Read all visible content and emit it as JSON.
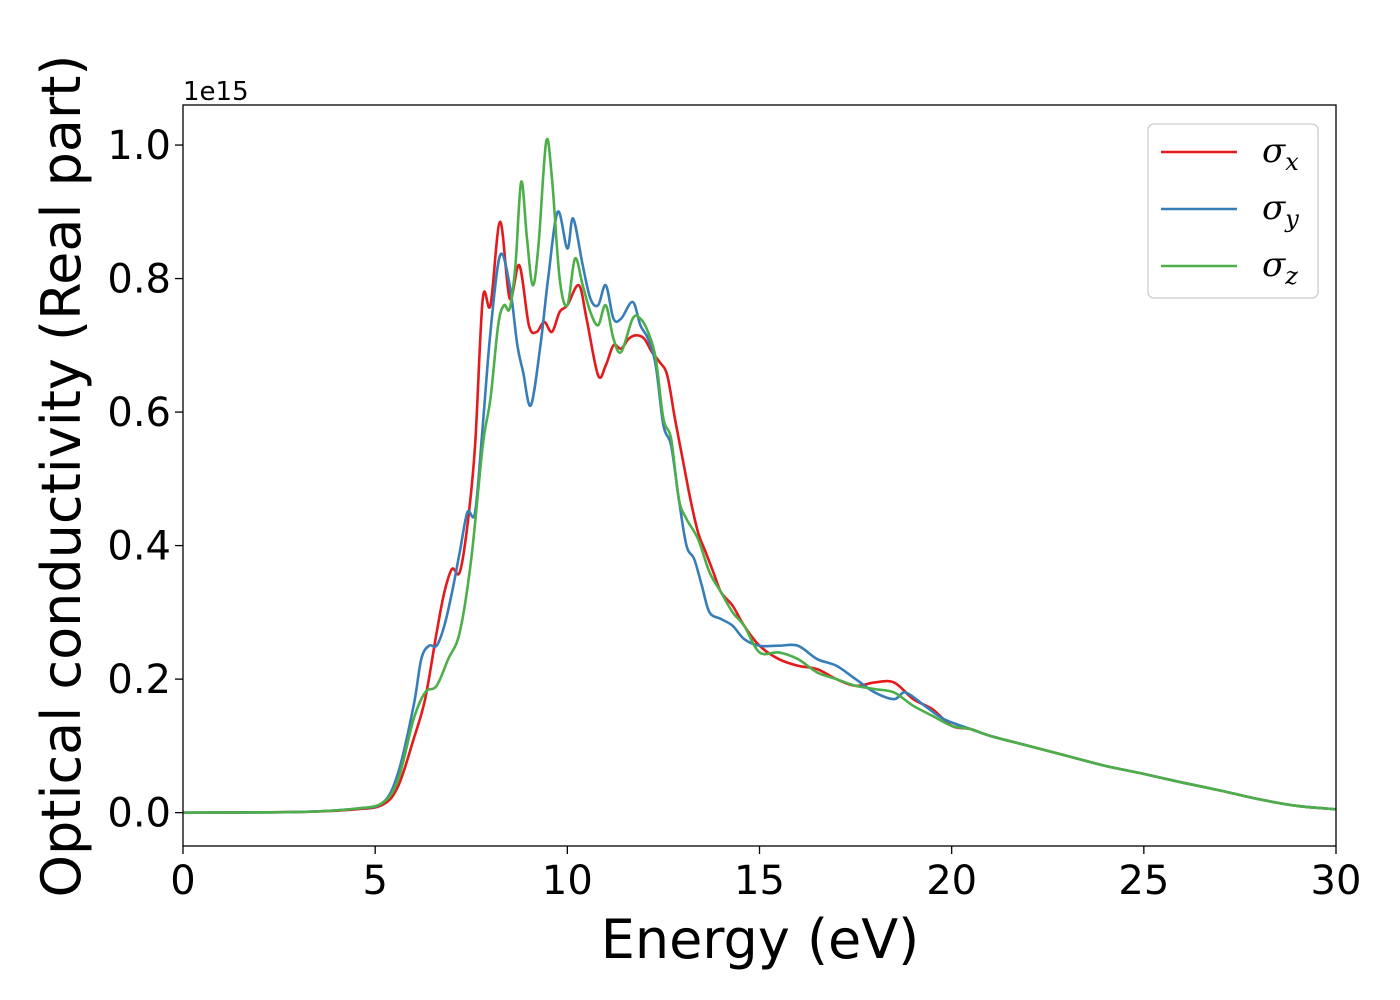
{
  "chart_data": {
    "type": "line",
    "title": "",
    "xlabel": "Energy (eV)",
    "ylabel": "Optical conductivity (Real part)",
    "y_offset_label": "1e15",
    "y_scale": 1000000000000000.0,
    "xlim": [
      0,
      30
    ],
    "ylim": [
      -0.05,
      1.06
    ],
    "x_ticks": [
      0,
      5,
      10,
      15,
      20,
      25,
      30
    ],
    "y_ticks": [
      0.0,
      0.2,
      0.4,
      0.6,
      0.8,
      1.0
    ],
    "x_tick_labels": [
      "0",
      "5",
      "10",
      "15",
      "20",
      "25",
      "30"
    ],
    "y_tick_labels": [
      "0.0",
      "0.2",
      "0.4",
      "0.6",
      "0.8",
      "1.0"
    ],
    "grid": false,
    "legend_position": "top-right",
    "series": [
      {
        "name": "σx",
        "legend_base": "σ",
        "legend_sub": "x",
        "color": "#e41a1c",
        "points": [
          [
            0,
            0
          ],
          [
            3,
            0.001
          ],
          [
            4.5,
            0.005
          ],
          [
            5.2,
            0.012
          ],
          [
            5.6,
            0.04
          ],
          [
            6.0,
            0.11
          ],
          [
            6.3,
            0.17
          ],
          [
            6.6,
            0.27
          ],
          [
            6.8,
            0.33
          ],
          [
            7.0,
            0.365
          ],
          [
            7.2,
            0.36
          ],
          [
            7.4,
            0.43
          ],
          [
            7.6,
            0.55
          ],
          [
            7.8,
            0.77
          ],
          [
            8.0,
            0.76
          ],
          [
            8.25,
            0.885
          ],
          [
            8.5,
            0.77
          ],
          [
            8.75,
            0.82
          ],
          [
            9.0,
            0.73
          ],
          [
            9.2,
            0.72
          ],
          [
            9.4,
            0.735
          ],
          [
            9.6,
            0.72
          ],
          [
            9.8,
            0.75
          ],
          [
            10.0,
            0.76
          ],
          [
            10.3,
            0.79
          ],
          [
            10.5,
            0.74
          ],
          [
            10.8,
            0.655
          ],
          [
            11.0,
            0.67
          ],
          [
            11.2,
            0.7
          ],
          [
            11.4,
            0.695
          ],
          [
            11.6,
            0.71
          ],
          [
            11.8,
            0.715
          ],
          [
            12.0,
            0.71
          ],
          [
            12.2,
            0.69
          ],
          [
            12.4,
            0.675
          ],
          [
            12.6,
            0.655
          ],
          [
            12.8,
            0.59
          ],
          [
            13.0,
            0.53
          ],
          [
            13.2,
            0.47
          ],
          [
            13.4,
            0.42
          ],
          [
            13.6,
            0.39
          ],
          [
            13.8,
            0.36
          ],
          [
            14.0,
            0.33
          ],
          [
            14.3,
            0.31
          ],
          [
            14.6,
            0.28
          ],
          [
            15.0,
            0.25
          ],
          [
            15.5,
            0.23
          ],
          [
            16.0,
            0.22
          ],
          [
            16.5,
            0.215
          ],
          [
            17.0,
            0.2
          ],
          [
            17.5,
            0.19
          ],
          [
            18.0,
            0.195
          ],
          [
            18.5,
            0.195
          ],
          [
            19.0,
            0.17
          ],
          [
            19.5,
            0.155
          ],
          [
            20.0,
            0.13
          ],
          [
            20.5,
            0.125
          ],
          [
            21.0,
            0.115
          ],
          [
            22.0,
            0.1
          ],
          [
            23.0,
            0.085
          ],
          [
            24.0,
            0.07
          ],
          [
            25.0,
            0.058
          ],
          [
            26.0,
            0.045
          ],
          [
            27.0,
            0.033
          ],
          [
            28.0,
            0.02
          ],
          [
            29.0,
            0.01
          ],
          [
            30.0,
            0.005
          ]
        ]
      },
      {
        "name": "σy",
        "legend_base": "σ",
        "legend_sub": "y",
        "color": "#377eb8",
        "points": [
          [
            0,
            0
          ],
          [
            3,
            0.001
          ],
          [
            4.5,
            0.006
          ],
          [
            5.2,
            0.015
          ],
          [
            5.6,
            0.06
          ],
          [
            6.0,
            0.16
          ],
          [
            6.2,
            0.23
          ],
          [
            6.4,
            0.25
          ],
          [
            6.6,
            0.25
          ],
          [
            6.8,
            0.28
          ],
          [
            7.0,
            0.33
          ],
          [
            7.2,
            0.39
          ],
          [
            7.4,
            0.45
          ],
          [
            7.6,
            0.45
          ],
          [
            7.8,
            0.58
          ],
          [
            8.0,
            0.72
          ],
          [
            8.25,
            0.835
          ],
          [
            8.5,
            0.79
          ],
          [
            8.7,
            0.7
          ],
          [
            8.85,
            0.66
          ],
          [
            9.05,
            0.61
          ],
          [
            9.3,
            0.7
          ],
          [
            9.5,
            0.8
          ],
          [
            9.75,
            0.9
          ],
          [
            10.0,
            0.845
          ],
          [
            10.15,
            0.89
          ],
          [
            10.4,
            0.82
          ],
          [
            10.6,
            0.77
          ],
          [
            10.8,
            0.76
          ],
          [
            11.0,
            0.79
          ],
          [
            11.2,
            0.74
          ],
          [
            11.4,
            0.74
          ],
          [
            11.7,
            0.765
          ],
          [
            11.9,
            0.73
          ],
          [
            12.1,
            0.71
          ],
          [
            12.3,
            0.67
          ],
          [
            12.5,
            0.58
          ],
          [
            12.7,
            0.55
          ],
          [
            12.9,
            0.47
          ],
          [
            13.1,
            0.4
          ],
          [
            13.3,
            0.38
          ],
          [
            13.5,
            0.34
          ],
          [
            13.7,
            0.3
          ],
          [
            14.0,
            0.29
          ],
          [
            14.3,
            0.28
          ],
          [
            14.6,
            0.26
          ],
          [
            15.0,
            0.25
          ],
          [
            15.5,
            0.25
          ],
          [
            16.0,
            0.25
          ],
          [
            16.5,
            0.23
          ],
          [
            17.0,
            0.22
          ],
          [
            17.5,
            0.2
          ],
          [
            18.0,
            0.18
          ],
          [
            18.5,
            0.17
          ],
          [
            18.8,
            0.18
          ],
          [
            19.3,
            0.16
          ],
          [
            19.8,
            0.14
          ],
          [
            20.5,
            0.125
          ],
          [
            21.0,
            0.115
          ],
          [
            22.0,
            0.1
          ],
          [
            23.0,
            0.085
          ],
          [
            24.0,
            0.07
          ],
          [
            25.0,
            0.058
          ],
          [
            26.0,
            0.045
          ],
          [
            27.0,
            0.033
          ],
          [
            28.0,
            0.02
          ],
          [
            29.0,
            0.01
          ],
          [
            30.0,
            0.005
          ]
        ]
      },
      {
        "name": "σz",
        "legend_base": "σ",
        "legend_sub": "z",
        "color": "#4daf4a",
        "points": [
          [
            0,
            0
          ],
          [
            3,
            0.001
          ],
          [
            4.5,
            0.006
          ],
          [
            5.2,
            0.015
          ],
          [
            5.6,
            0.05
          ],
          [
            6.0,
            0.14
          ],
          [
            6.3,
            0.18
          ],
          [
            6.6,
            0.19
          ],
          [
            6.9,
            0.23
          ],
          [
            7.2,
            0.27
          ],
          [
            7.5,
            0.38
          ],
          [
            7.8,
            0.55
          ],
          [
            8.0,
            0.62
          ],
          [
            8.2,
            0.73
          ],
          [
            8.35,
            0.76
          ],
          [
            8.5,
            0.755
          ],
          [
            8.65,
            0.82
          ],
          [
            8.8,
            0.945
          ],
          [
            8.95,
            0.86
          ],
          [
            9.1,
            0.79
          ],
          [
            9.25,
            0.85
          ],
          [
            9.45,
            1.005
          ],
          [
            9.6,
            0.95
          ],
          [
            9.8,
            0.8
          ],
          [
            10.0,
            0.76
          ],
          [
            10.2,
            0.83
          ],
          [
            10.4,
            0.79
          ],
          [
            10.6,
            0.75
          ],
          [
            10.8,
            0.73
          ],
          [
            11.0,
            0.76
          ],
          [
            11.2,
            0.71
          ],
          [
            11.4,
            0.69
          ],
          [
            11.7,
            0.74
          ],
          [
            11.9,
            0.74
          ],
          [
            12.1,
            0.72
          ],
          [
            12.3,
            0.68
          ],
          [
            12.5,
            0.59
          ],
          [
            12.7,
            0.56
          ],
          [
            12.9,
            0.47
          ],
          [
            13.1,
            0.44
          ],
          [
            13.4,
            0.41
          ],
          [
            13.7,
            0.36
          ],
          [
            14.0,
            0.33
          ],
          [
            14.3,
            0.3
          ],
          [
            14.6,
            0.28
          ],
          [
            15.0,
            0.24
          ],
          [
            15.5,
            0.24
          ],
          [
            16.0,
            0.23
          ],
          [
            16.5,
            0.21
          ],
          [
            17.0,
            0.2
          ],
          [
            17.5,
            0.19
          ],
          [
            18.0,
            0.185
          ],
          [
            18.5,
            0.18
          ],
          [
            19.0,
            0.16
          ],
          [
            19.5,
            0.145
          ],
          [
            20.0,
            0.13
          ],
          [
            20.5,
            0.125
          ],
          [
            21.0,
            0.115
          ],
          [
            22.0,
            0.1
          ],
          [
            23.0,
            0.085
          ],
          [
            24.0,
            0.07
          ],
          [
            25.0,
            0.058
          ],
          [
            26.0,
            0.045
          ],
          [
            27.0,
            0.033
          ],
          [
            28.0,
            0.02
          ],
          [
            29.0,
            0.01
          ],
          [
            30.0,
            0.005
          ]
        ]
      }
    ]
  }
}
